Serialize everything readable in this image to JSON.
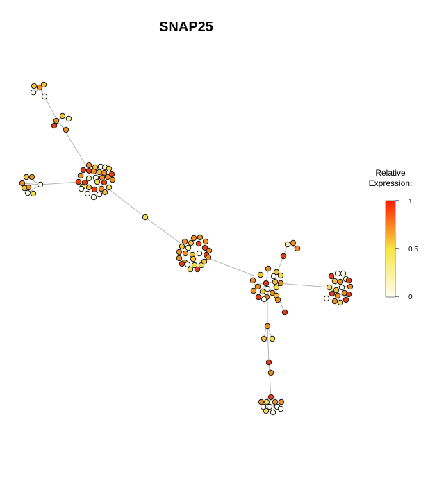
{
  "title": "SNAP25",
  "legend": {
    "title_line1": "Relative",
    "title_line2": "Expression:",
    "ticks": [
      "1",
      "0.5",
      "0"
    ],
    "colors": {
      "low": "#fdfdf0",
      "mid": "#f5e642",
      "high": "#ff1a00"
    }
  },
  "colors": {
    "edge": "#b4b4b4",
    "node_stroke": "#1a1a1a"
  }
}
